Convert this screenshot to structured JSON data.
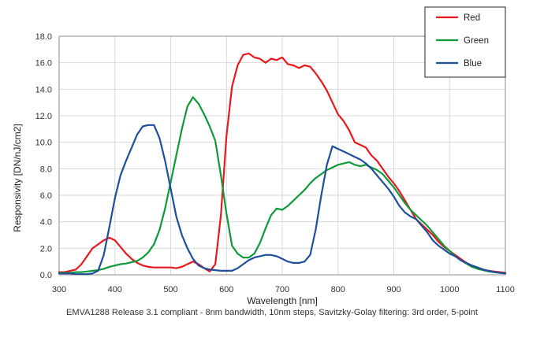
{
  "chart_data": {
    "type": "line",
    "title": "",
    "xlabel": "Wavelength [nm]",
    "ylabel": "Responsivity [DN/nJ/cm2]",
    "caption": "EMVA1288 Release 3.1 compliant - 8nm bandwidth, 10nm steps, Savitzky-Golay filtering: 3rd order, 5-point",
    "xlim": [
      300,
      1100
    ],
    "ylim": [
      0,
      18
    ],
    "x_ticks": [
      "300",
      "400",
      "500",
      "600",
      "700",
      "800",
      "900",
      "1000",
      "1100"
    ],
    "y_ticks": [
      "0.0",
      "2.0",
      "4.0",
      "6.0",
      "8.0",
      "10.0",
      "12.0",
      "14.0",
      "16.0",
      "18.0"
    ],
    "grid": true,
    "legend_position": "top-right",
    "x": [
      300,
      310,
      320,
      330,
      340,
      350,
      360,
      370,
      380,
      390,
      400,
      410,
      420,
      430,
      440,
      450,
      460,
      470,
      480,
      490,
      500,
      510,
      520,
      530,
      540,
      550,
      560,
      570,
      580,
      590,
      600,
      610,
      620,
      630,
      640,
      650,
      660,
      670,
      680,
      690,
      700,
      710,
      720,
      730,
      740,
      750,
      760,
      770,
      780,
      790,
      800,
      810,
      820,
      830,
      840,
      850,
      860,
      870,
      880,
      890,
      900,
      910,
      920,
      930,
      940,
      950,
      960,
      970,
      980,
      990,
      1000,
      1010,
      1020,
      1030,
      1040,
      1050,
      1060,
      1070,
      1080,
      1090,
      1100
    ],
    "series": [
      {
        "name": "Red",
        "color": "#e8191c",
        "values": [
          0.2,
          0.2,
          0.3,
          0.4,
          0.8,
          1.4,
          2.0,
          2.3,
          2.6,
          2.8,
          2.6,
          2.1,
          1.6,
          1.2,
          0.9,
          0.7,
          0.6,
          0.55,
          0.55,
          0.55,
          0.55,
          0.5,
          0.6,
          0.8,
          1.0,
          0.8,
          0.5,
          0.25,
          0.8,
          4.5,
          10.5,
          14.2,
          15.8,
          16.6,
          16.7,
          16.4,
          16.3,
          16.0,
          16.3,
          16.2,
          16.4,
          15.9,
          15.8,
          15.6,
          15.8,
          15.7,
          15.2,
          14.6,
          13.9,
          13.0,
          12.1,
          11.6,
          10.9,
          10.0,
          9.8,
          9.6,
          9.0,
          8.6,
          8.0,
          7.4,
          6.9,
          6.3,
          5.6,
          4.9,
          4.2,
          3.8,
          3.4,
          3.0,
          2.5,
          2.1,
          1.8,
          1.5,
          1.2,
          0.9,
          0.7,
          0.55,
          0.4,
          0.3,
          0.25,
          0.2,
          0.15
        ]
      },
      {
        "name": "Green",
        "color": "#0e9a3a",
        "values": [
          0.15,
          0.15,
          0.15,
          0.2,
          0.2,
          0.25,
          0.3,
          0.35,
          0.45,
          0.6,
          0.7,
          0.8,
          0.85,
          0.95,
          1.05,
          1.3,
          1.7,
          2.3,
          3.4,
          5.0,
          7.0,
          9.0,
          11.0,
          12.7,
          13.4,
          12.9,
          12.1,
          11.2,
          10.1,
          7.5,
          4.6,
          2.2,
          1.6,
          1.3,
          1.3,
          1.6,
          2.4,
          3.5,
          4.5,
          5.0,
          4.9,
          5.2,
          5.6,
          6.0,
          6.4,
          6.9,
          7.3,
          7.6,
          7.9,
          8.1,
          8.3,
          8.4,
          8.5,
          8.3,
          8.2,
          8.3,
          8.1,
          7.9,
          7.6,
          7.1,
          6.6,
          6.0,
          5.4,
          4.9,
          4.5,
          4.1,
          3.7,
          3.2,
          2.7,
          2.2,
          1.8,
          1.4,
          1.1,
          0.85,
          0.6,
          0.45,
          0.35,
          0.25,
          0.2,
          0.15,
          0.1
        ]
      },
      {
        "name": "Blue",
        "color": "#1f4e9c",
        "values": [
          0.1,
          0.1,
          0.1,
          0.05,
          0.05,
          0.05,
          0.1,
          0.3,
          1.5,
          3.6,
          5.8,
          7.5,
          8.6,
          9.6,
          10.6,
          11.2,
          11.3,
          11.3,
          10.3,
          8.6,
          6.5,
          4.4,
          3.0,
          2.0,
          1.2,
          0.7,
          0.5,
          0.4,
          0.35,
          0.3,
          0.3,
          0.3,
          0.5,
          0.8,
          1.1,
          1.3,
          1.4,
          1.5,
          1.5,
          1.4,
          1.2,
          1.0,
          0.9,
          0.9,
          1.0,
          1.5,
          3.4,
          6.0,
          8.3,
          9.7,
          9.5,
          9.3,
          9.1,
          8.9,
          8.7,
          8.4,
          8.0,
          7.5,
          7.0,
          6.5,
          5.9,
          5.2,
          4.7,
          4.4,
          4.2,
          3.7,
          3.2,
          2.6,
          2.2,
          1.9,
          1.6,
          1.4,
          1.1,
          0.9,
          0.7,
          0.55,
          0.4,
          0.3,
          0.2,
          0.15,
          0.1
        ]
      }
    ]
  }
}
